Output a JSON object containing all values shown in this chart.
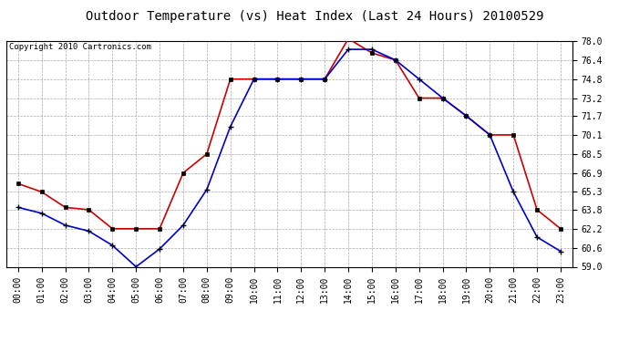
{
  "title": "Outdoor Temperature (vs) Heat Index (Last 24 Hours) 20100529",
  "copyright": "Copyright 2010 Cartronics.com",
  "hours": [
    "00:00",
    "01:00",
    "02:00",
    "03:00",
    "04:00",
    "05:00",
    "06:00",
    "07:00",
    "08:00",
    "09:00",
    "10:00",
    "11:00",
    "12:00",
    "13:00",
    "14:00",
    "15:00",
    "16:00",
    "17:00",
    "18:00",
    "19:00",
    "20:00",
    "21:00",
    "22:00",
    "23:00"
  ],
  "heat_index": [
    66.0,
    65.3,
    64.0,
    63.8,
    62.2,
    62.2,
    62.2,
    66.9,
    68.5,
    74.8,
    74.8,
    74.8,
    74.8,
    74.8,
    78.2,
    77.0,
    76.4,
    73.2,
    73.2,
    71.7,
    70.1,
    70.1,
    63.8,
    62.2
  ],
  "temperature": [
    64.0,
    63.5,
    62.5,
    62.0,
    60.8,
    59.0,
    60.5,
    62.5,
    65.5,
    70.8,
    74.8,
    74.8,
    74.8,
    74.8,
    77.3,
    77.3,
    76.4,
    74.8,
    73.2,
    71.7,
    70.1,
    65.3,
    61.5,
    60.3
  ],
  "heat_index_color": "#cc0000",
  "temperature_color": "#0000cc",
  "ylim_min": 59.0,
  "ylim_max": 78.0,
  "ytick_values": [
    59.0,
    60.6,
    62.2,
    63.8,
    65.3,
    66.9,
    68.5,
    70.1,
    71.7,
    73.2,
    74.8,
    76.4,
    78.0
  ],
  "ytick_labels": [
    "59.0",
    "60.6",
    "62.2",
    "63.8",
    "65.3",
    "66.9",
    "68.5",
    "70.1",
    "71.7",
    "73.2",
    "74.8",
    "76.4",
    "78.0"
  ],
  "background_color": "#ffffff",
  "grid_color": "#aaaaaa",
  "title_fontsize": 10,
  "copyright_fontsize": 6.5,
  "tick_fontsize": 7
}
